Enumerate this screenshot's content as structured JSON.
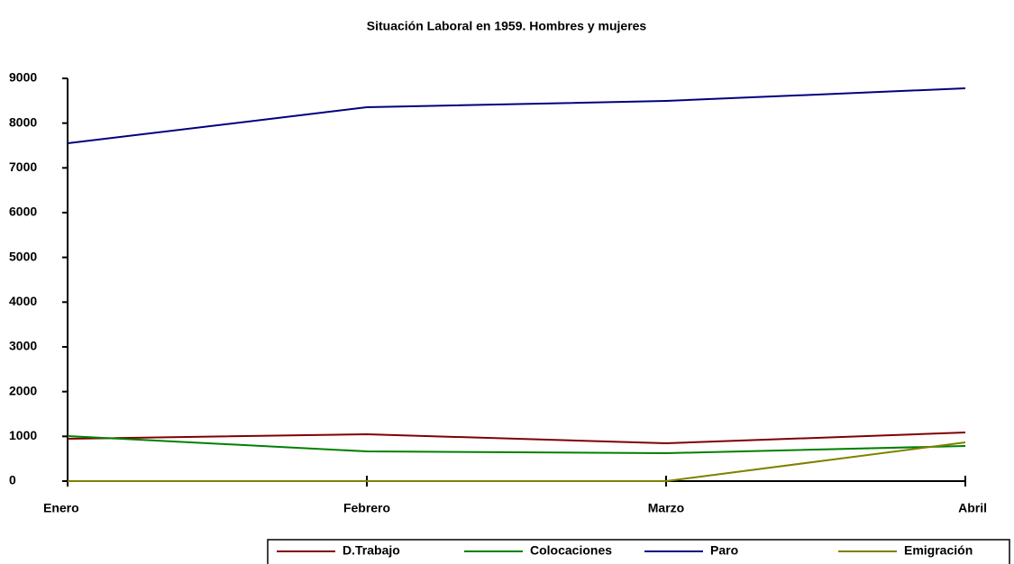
{
  "chart_data": {
    "type": "line",
    "title": "Situación Laboral en 1959. Hombres y mujeres",
    "categories": [
      "Enero",
      "Febrero",
      "Marzo",
      "Abril"
    ],
    "series": [
      {
        "name": "D.Trabajo",
        "color": "#800000",
        "values": [
          946,
          1047,
          846,
          1087
        ]
      },
      {
        "name": "Colocaciones",
        "color": "#008000",
        "values": [
          1007,
          664,
          624,
          785
        ]
      },
      {
        "name": "Paro",
        "color": "#000080",
        "values": [
          7550,
          8355,
          8496,
          8778
        ]
      },
      {
        "name": "Emigración",
        "color": "#808000",
        "values": [
          0,
          0,
          0,
          866
        ]
      }
    ],
    "ylim": [
      0,
      9000
    ],
    "yticks": [
      0,
      1000,
      2000,
      3000,
      4000,
      5000,
      6000,
      7000,
      8000,
      9000
    ],
    "grid": false,
    "legend": "bottom"
  }
}
